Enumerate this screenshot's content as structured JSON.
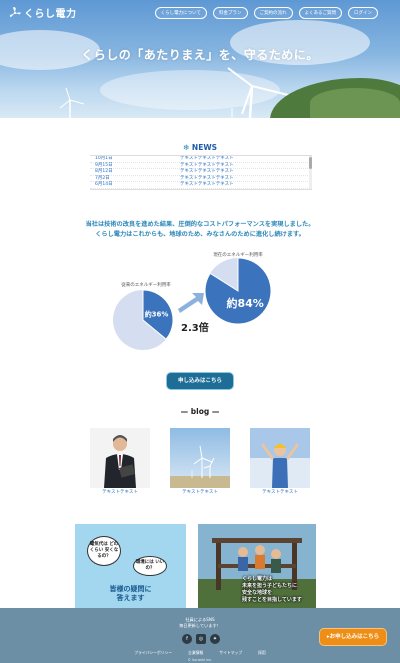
{
  "header": {
    "logo_text": "くらし電力",
    "nav": [
      "くらし電力について",
      "料金プラン",
      "ご契約の流れ",
      "よくあるご質問",
      "ログイン"
    ],
    "hero_title": "くらしの「あたりまえ」を、守るために。"
  },
  "news": {
    "title": "NEWS",
    "items": [
      {
        "date": "10月1日",
        "text": "テキストテキストテキスト"
      },
      {
        "date": "9月15日",
        "text": "テキストテキストテキスト"
      },
      {
        "date": "8月12日",
        "text": "テキストテキストテキスト"
      },
      {
        "date": "7月2日",
        "text": "テキストテキストテキスト"
      },
      {
        "date": "6月14日",
        "text": "テキストテキストテキスト"
      }
    ]
  },
  "intro": {
    "line1": "当社は技術の改良を進めた結果、圧倒的なコストパフォーマンスを実現しました。",
    "line2": "くらし電力はこれからも、地球のため、みなさんのために進化し続けます。"
  },
  "chart_data": [
    {
      "type": "pie",
      "title": "従来のエネルギー利用率",
      "values": [
        36,
        64
      ],
      "label": "約36%",
      "colors": [
        "#3b73bd",
        "#d5def0"
      ]
    },
    {
      "type": "pie",
      "title": "現在のエネルギー利用率",
      "values": [
        84,
        16
      ],
      "label": "約84%",
      "colors": [
        "#3b73bd",
        "#d5def0"
      ]
    }
  ],
  "multiplier": "2.3倍",
  "cta_label": "申し込みはこちら",
  "blog": {
    "title": "— blog —",
    "items": [
      "テキストテキスト",
      "テキストテキスト",
      "テキストテキスト"
    ]
  },
  "banners": {
    "faq_bubble1": "電気代は どのくらい 安くなるの？",
    "faq_bubble2": "環境には いいの？",
    "faq_line1": "皆様の疑問に",
    "faq_line2": "答えます",
    "kids_line1": "くらし電力は",
    "kids_line2": "未来を担う子どもたちに",
    "kids_line3": "安全な地球を",
    "kids_line4": "残すことを目指しています"
  },
  "footer": {
    "line1": "社員によるSNS",
    "line2": "毎日更新しています！",
    "links": [
      "プライバシーポリシー",
      "企業情報",
      "サイトマップ",
      "採用"
    ],
    "copyright": "© kurashi inc.",
    "float_cta": "お申し込みはこちら"
  },
  "colors": {
    "accent": "#1d6d96",
    "pie": "#3b73bd",
    "orange": "#ef8e17",
    "footer": "#6d8fa6"
  }
}
